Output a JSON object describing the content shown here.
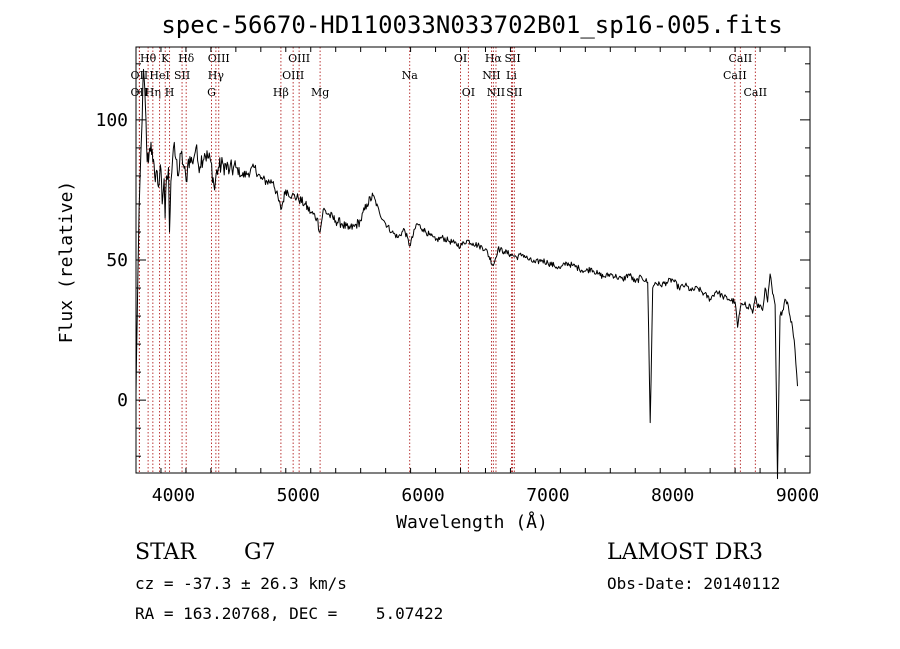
{
  "chart_data": {
    "type": "line",
    "title": "spec-56670-HD110033N033702B01_sp16-005.fits",
    "xlabel": "Wavelength (Å)",
    "ylabel": "Flux (relative)",
    "xlim": [
      3700,
      9100
    ],
    "ylim": [
      -26,
      126
    ],
    "xticks": [
      4000,
      5000,
      6000,
      7000,
      8000,
      9000
    ],
    "yticks": [
      0,
      50,
      100
    ],
    "series": [
      {
        "name": "spectrum",
        "x": [
          3700,
          3715,
          3730,
          3745,
          3760,
          3775,
          3790,
          3805,
          3820,
          3835,
          3850,
          3865,
          3880,
          3895,
          3910,
          3925,
          3933,
          3945,
          3960,
          3968,
          3980,
          4000,
          4020,
          4040,
          4060,
          4080,
          4102,
          4120,
          4150,
          4180,
          4200,
          4250,
          4300,
          4330,
          4340,
          4360,
          4400,
          4450,
          4500,
          4550,
          4600,
          4650,
          4700,
          4750,
          4800,
          4861,
          4900,
          4950,
          5000,
          5050,
          5100,
          5150,
          5175,
          5200,
          5250,
          5300,
          5350,
          5400,
          5450,
          5500,
          5550,
          5600,
          5650,
          5700,
          5750,
          5800,
          5850,
          5893,
          5950,
          6000,
          6050,
          6100,
          6150,
          6200,
          6250,
          6300,
          6350,
          6400,
          6450,
          6500,
          6563,
          6600,
          6650,
          6700,
          6750,
          6800,
          6850,
          6900,
          6950,
          7000,
          7050,
          7100,
          7150,
          7200,
          7250,
          7300,
          7350,
          7400,
          7450,
          7500,
          7550,
          7600,
          7650,
          7700,
          7750,
          7800,
          7820,
          7840,
          7860,
          7900,
          7950,
          8000,
          8050,
          8100,
          8150,
          8200,
          8250,
          8300,
          8350,
          8400,
          8450,
          8500,
          8520,
          8542,
          8560,
          8580,
          8600,
          8620,
          8640,
          8662,
          8680,
          8700,
          8720,
          8740,
          8760,
          8780,
          8800,
          8820,
          8840,
          8860,
          8880,
          8900,
          8920,
          8940,
          8960,
          8980,
          9000
        ],
        "y": [
          2,
          45,
          75,
          95,
          118,
          105,
          85,
          88,
          92,
          85,
          80,
          82,
          76,
          84,
          70,
          79,
          65,
          80,
          83,
          60,
          78,
          90,
          86,
          80,
          88,
          84,
          78,
          86,
          85,
          90,
          84,
          88,
          85,
          75,
          80,
          83,
          84,
          82,
          83,
          80,
          81,
          83,
          79,
          78,
          78,
          68,
          75,
          73,
          72,
          70,
          67,
          65,
          60,
          68,
          66,
          64,
          63,
          61,
          62,
          64,
          70,
          73,
          67,
          63,
          60,
          58,
          61,
          55,
          63,
          61,
          59,
          57,
          58,
          57,
          56,
          55,
          57,
          56,
          55,
          54,
          48,
          54,
          53,
          52,
          51,
          52,
          50,
          49,
          50,
          49,
          48,
          47,
          49,
          48,
          47,
          46,
          47,
          45,
          44,
          45,
          44,
          43,
          45,
          42,
          44,
          42,
          -8,
          40,
          42,
          41,
          42,
          43,
          40,
          41,
          39,
          40,
          38,
          36,
          39,
          37,
          36,
          35,
          26,
          33,
          34,
          35,
          33,
          34,
          31,
          37,
          33,
          34,
          32,
          40,
          35,
          45,
          38,
          34,
          -28,
          30,
          32,
          36,
          35,
          30,
          26,
          18,
          5
        ],
        "color": "#000000"
      }
    ],
    "line_markers": [
      {
        "name": "Hθ",
        "x": 3797,
        "row": 1
      },
      {
        "name": "OII",
        "x": 3727,
        "row": 2
      },
      {
        "name": "OII",
        "x": 3727,
        "row": 3
      },
      {
        "name": "Hη",
        "x": 3835,
        "row": 3
      },
      {
        "name": "HeI",
        "x": 3889,
        "row": 2
      },
      {
        "name": "K",
        "x": 3934,
        "row": 1
      },
      {
        "name": "H",
        "x": 3969,
        "row": 3
      },
      {
        "name": "SII",
        "x": 4069,
        "row": 2
      },
      {
        "name": "Hδ",
        "x": 4102,
        "row": 1
      },
      {
        "name": "OIII",
        "x": 4363,
        "row": 1
      },
      {
        "name": "Hγ",
        "x": 4340,
        "row": 2
      },
      {
        "name": "G",
        "x": 4305,
        "row": 3
      },
      {
        "name": "Hβ",
        "x": 4861,
        "row": 3
      },
      {
        "name": "OIII",
        "x": 5007,
        "row": 1
      },
      {
        "name": "OIII",
        "x": 4959,
        "row": 2
      },
      {
        "name": "Mg",
        "x": 5175,
        "row": 3
      },
      {
        "name": "Na",
        "x": 5893,
        "row": 2
      },
      {
        "name": "OI",
        "x": 6300,
        "row": 1
      },
      {
        "name": "OI",
        "x": 6363,
        "row": 3
      },
      {
        "name": "Hα",
        "x": 6563,
        "row": 1
      },
      {
        "name": "NII",
        "x": 6548,
        "row": 2
      },
      {
        "name": "NII",
        "x": 6584,
        "row": 3
      },
      {
        "name": "SII",
        "x": 6717,
        "row": 1
      },
      {
        "name": "Li",
        "x": 6708,
        "row": 2
      },
      {
        "name": "SII",
        "x": 6731,
        "row": 3
      },
      {
        "name": "CaII",
        "x": 8542,
        "row": 1
      },
      {
        "name": "CaII",
        "x": 8498,
        "row": 2
      },
      {
        "name": "CaII",
        "x": 8662,
        "row": 3
      }
    ]
  },
  "info": {
    "object_class": "STAR",
    "subclass": "G7",
    "survey": "LAMOST DR3",
    "redshift": "cz = -37.3 ± 26.3 km/s",
    "obs_date": "Obs-Date: 20140112",
    "coords": "RA = 163.20768, DEC =    5.07422"
  }
}
